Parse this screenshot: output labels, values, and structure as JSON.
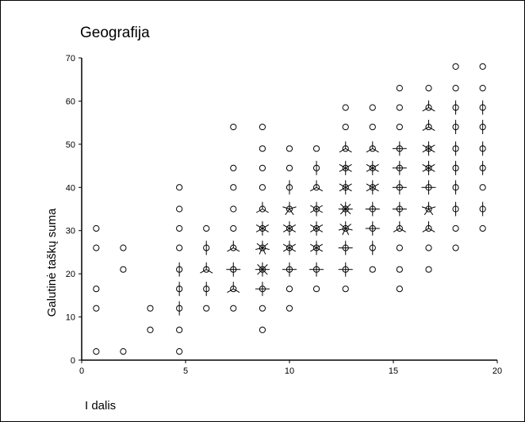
{
  "chart_data": {
    "type": "scatter",
    "subtype": "sunflower",
    "title": "Geografija",
    "xlabel": "I dalis",
    "ylabel": "Galutinė taškų suma",
    "xlim": [
      0,
      20
    ],
    "ylim": [
      0,
      70
    ],
    "x_ticks": [
      "0",
      "5",
      "10",
      "15",
      "20"
    ],
    "y_ticks": [
      "0",
      "10",
      "20",
      "30",
      "40",
      "50",
      "60",
      "70"
    ],
    "x_tick_values": [
      0,
      5,
      10,
      15,
      20
    ],
    "y_tick_values": [
      0,
      10,
      20,
      30,
      40,
      50,
      60,
      70
    ],
    "grid": false,
    "legend": "none",
    "points_note_petals": "n = number of sunflower petals (0 = single circle)",
    "points": [
      {
        "x": 0.7,
        "y": 2,
        "n": 0
      },
      {
        "x": 0.7,
        "y": 12,
        "n": 0
      },
      {
        "x": 0.7,
        "y": 16.5,
        "n": 0
      },
      {
        "x": 0.7,
        "y": 26,
        "n": 0
      },
      {
        "x": 0.7,
        "y": 30.5,
        "n": 0
      },
      {
        "x": 2.0,
        "y": 2,
        "n": 0
      },
      {
        "x": 2.0,
        "y": 21,
        "n": 0
      },
      {
        "x": 2.0,
        "y": 26,
        "n": 0
      },
      {
        "x": 3.3,
        "y": 7,
        "n": 0
      },
      {
        "x": 3.3,
        "y": 12,
        "n": 0
      },
      {
        "x": 4.7,
        "y": 2,
        "n": 0
      },
      {
        "x": 4.7,
        "y": 7,
        "n": 0
      },
      {
        "x": 4.7,
        "y": 12,
        "n": 2
      },
      {
        "x": 4.7,
        "y": 16.5,
        "n": 2
      },
      {
        "x": 4.7,
        "y": 21,
        "n": 2
      },
      {
        "x": 4.7,
        "y": 26,
        "n": 0
      },
      {
        "x": 4.7,
        "y": 30.5,
        "n": 0
      },
      {
        "x": 4.7,
        "y": 35,
        "n": 0
      },
      {
        "x": 4.7,
        "y": 40,
        "n": 0
      },
      {
        "x": 6.0,
        "y": 12,
        "n": 0
      },
      {
        "x": 6.0,
        "y": 16.5,
        "n": 2
      },
      {
        "x": 6.0,
        "y": 21,
        "n": 3
      },
      {
        "x": 6.0,
        "y": 26,
        "n": 2
      },
      {
        "x": 6.0,
        "y": 30.5,
        "n": 0
      },
      {
        "x": 7.3,
        "y": 12,
        "n": 0
      },
      {
        "x": 7.3,
        "y": 16.5,
        "n": 3
      },
      {
        "x": 7.3,
        "y": 21,
        "n": 4
      },
      {
        "x": 7.3,
        "y": 26,
        "n": 3
      },
      {
        "x": 7.3,
        "y": 30.5,
        "n": 0
      },
      {
        "x": 7.3,
        "y": 35,
        "n": 0
      },
      {
        "x": 7.3,
        "y": 40,
        "n": 0
      },
      {
        "x": 7.3,
        "y": 44.5,
        "n": 0
      },
      {
        "x": 7.3,
        "y": 54,
        "n": 0
      },
      {
        "x": 8.7,
        "y": 7,
        "n": 0
      },
      {
        "x": 8.7,
        "y": 12,
        "n": 0
      },
      {
        "x": 8.7,
        "y": 16.5,
        "n": 4
      },
      {
        "x": 8.7,
        "y": 21,
        "n": 8
      },
      {
        "x": 8.7,
        "y": 26,
        "n": 7
      },
      {
        "x": 8.7,
        "y": 30.5,
        "n": 6
      },
      {
        "x": 8.7,
        "y": 35,
        "n": 3
      },
      {
        "x": 8.7,
        "y": 40,
        "n": 0
      },
      {
        "x": 8.7,
        "y": 44.5,
        "n": 0
      },
      {
        "x": 8.7,
        "y": 49,
        "n": 0
      },
      {
        "x": 8.7,
        "y": 54,
        "n": 0
      },
      {
        "x": 10.0,
        "y": 12,
        "n": 0
      },
      {
        "x": 10.0,
        "y": 16.5,
        "n": 0
      },
      {
        "x": 10.0,
        "y": 21,
        "n": 4
      },
      {
        "x": 10.0,
        "y": 26,
        "n": 6
      },
      {
        "x": 10.0,
        "y": 30.5,
        "n": 6
      },
      {
        "x": 10.0,
        "y": 35,
        "n": 5
      },
      {
        "x": 10.0,
        "y": 40,
        "n": 2
      },
      {
        "x": 10.0,
        "y": 44.5,
        "n": 0
      },
      {
        "x": 10.0,
        "y": 49,
        "n": 0
      },
      {
        "x": 11.3,
        "y": 16.5,
        "n": 0
      },
      {
        "x": 11.3,
        "y": 21,
        "n": 4
      },
      {
        "x": 11.3,
        "y": 26,
        "n": 6
      },
      {
        "x": 11.3,
        "y": 30.5,
        "n": 6
      },
      {
        "x": 11.3,
        "y": 35,
        "n": 6
      },
      {
        "x": 11.3,
        "y": 40,
        "n": 3
      },
      {
        "x": 11.3,
        "y": 44.5,
        "n": 2
      },
      {
        "x": 11.3,
        "y": 49,
        "n": 0
      },
      {
        "x": 12.7,
        "y": 16.5,
        "n": 0
      },
      {
        "x": 12.7,
        "y": 21,
        "n": 4
      },
      {
        "x": 12.7,
        "y": 26,
        "n": 4
      },
      {
        "x": 12.7,
        "y": 30.5,
        "n": 7
      },
      {
        "x": 12.7,
        "y": 35,
        "n": 8
      },
      {
        "x": 12.7,
        "y": 40,
        "n": 6
      },
      {
        "x": 12.7,
        "y": 44.5,
        "n": 6
      },
      {
        "x": 12.7,
        "y": 49,
        "n": 3
      },
      {
        "x": 12.7,
        "y": 54,
        "n": 0
      },
      {
        "x": 12.7,
        "y": 58.5,
        "n": 0
      },
      {
        "x": 14.0,
        "y": 21,
        "n": 0
      },
      {
        "x": 14.0,
        "y": 26,
        "n": 2
      },
      {
        "x": 14.0,
        "y": 30.5,
        "n": 4
      },
      {
        "x": 14.0,
        "y": 35,
        "n": 4
      },
      {
        "x": 14.0,
        "y": 40,
        "n": 6
      },
      {
        "x": 14.0,
        "y": 44.5,
        "n": 6
      },
      {
        "x": 14.0,
        "y": 49,
        "n": 3
      },
      {
        "x": 14.0,
        "y": 54,
        "n": 0
      },
      {
        "x": 14.0,
        "y": 58.5,
        "n": 0
      },
      {
        "x": 15.3,
        "y": 16.5,
        "n": 0
      },
      {
        "x": 15.3,
        "y": 21,
        "n": 0
      },
      {
        "x": 15.3,
        "y": 26,
        "n": 0
      },
      {
        "x": 15.3,
        "y": 30.5,
        "n": 3
      },
      {
        "x": 15.3,
        "y": 35,
        "n": 4
      },
      {
        "x": 15.3,
        "y": 40,
        "n": 4
      },
      {
        "x": 15.3,
        "y": 44.5,
        "n": 4
      },
      {
        "x": 15.3,
        "y": 49,
        "n": 4
      },
      {
        "x": 15.3,
        "y": 54,
        "n": 0
      },
      {
        "x": 15.3,
        "y": 58.5,
        "n": 0
      },
      {
        "x": 15.3,
        "y": 63,
        "n": 0
      },
      {
        "x": 16.7,
        "y": 21,
        "n": 0
      },
      {
        "x": 16.7,
        "y": 26,
        "n": 0
      },
      {
        "x": 16.7,
        "y": 30.5,
        "n": 3
      },
      {
        "x": 16.7,
        "y": 35,
        "n": 5
      },
      {
        "x": 16.7,
        "y": 40,
        "n": 4
      },
      {
        "x": 16.7,
        "y": 44.5,
        "n": 6
      },
      {
        "x": 16.7,
        "y": 49,
        "n": 6
      },
      {
        "x": 16.7,
        "y": 54,
        "n": 3
      },
      {
        "x": 16.7,
        "y": 58.5,
        "n": 3
      },
      {
        "x": 16.7,
        "y": 63,
        "n": 0
      },
      {
        "x": 18.0,
        "y": 26,
        "n": 0
      },
      {
        "x": 18.0,
        "y": 30.5,
        "n": 0
      },
      {
        "x": 18.0,
        "y": 35,
        "n": 2
      },
      {
        "x": 18.0,
        "y": 40,
        "n": 2
      },
      {
        "x": 18.0,
        "y": 44.5,
        "n": 2
      },
      {
        "x": 18.0,
        "y": 49,
        "n": 2
      },
      {
        "x": 18.0,
        "y": 54,
        "n": 2
      },
      {
        "x": 18.0,
        "y": 58.5,
        "n": 2
      },
      {
        "x": 18.0,
        "y": 63,
        "n": 0
      },
      {
        "x": 18.0,
        "y": 68,
        "n": 0
      },
      {
        "x": 19.3,
        "y": 30.5,
        "n": 0
      },
      {
        "x": 19.3,
        "y": 35,
        "n": 2
      },
      {
        "x": 19.3,
        "y": 40,
        "n": 0
      },
      {
        "x": 19.3,
        "y": 44.5,
        "n": 2
      },
      {
        "x": 19.3,
        "y": 49,
        "n": 2
      },
      {
        "x": 19.3,
        "y": 54,
        "n": 2
      },
      {
        "x": 19.3,
        "y": 58.5,
        "n": 2
      },
      {
        "x": 19.3,
        "y": 63,
        "n": 0
      },
      {
        "x": 19.3,
        "y": 68,
        "n": 0
      }
    ]
  }
}
